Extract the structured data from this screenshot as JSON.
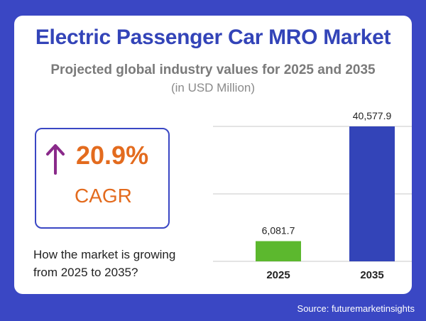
{
  "title": "Electric Passenger Car MRO Market",
  "subtitle": "Projected global industry values for 2025 and 2035",
  "unit_note": "(in USD Million)",
  "cagr": {
    "value": "20.9%",
    "label": "CAGR",
    "icon": "up-arrow-icon",
    "color": "#e36b1e",
    "arrow_color": "#8a2a8a"
  },
  "question": "How the market is growing from 2025 to 2035?",
  "source": "Source: futuremarketinsights",
  "colors": {
    "background": "#3a47c4",
    "title": "#3344b8",
    "bar_2025": "#5cb82e",
    "bar_2035": "#3344b8"
  },
  "chart_data": {
    "type": "bar",
    "categories": [
      "2025",
      "2035"
    ],
    "values": [
      6081.7,
      40577.9
    ],
    "value_labels": [
      "6,081.7",
      "40,577.9"
    ],
    "bar_colors": [
      "#5cb82e",
      "#3344b8"
    ],
    "ylim": [
      0,
      40577.9
    ],
    "grid": true,
    "title": "",
    "xlabel": "",
    "ylabel": ""
  }
}
